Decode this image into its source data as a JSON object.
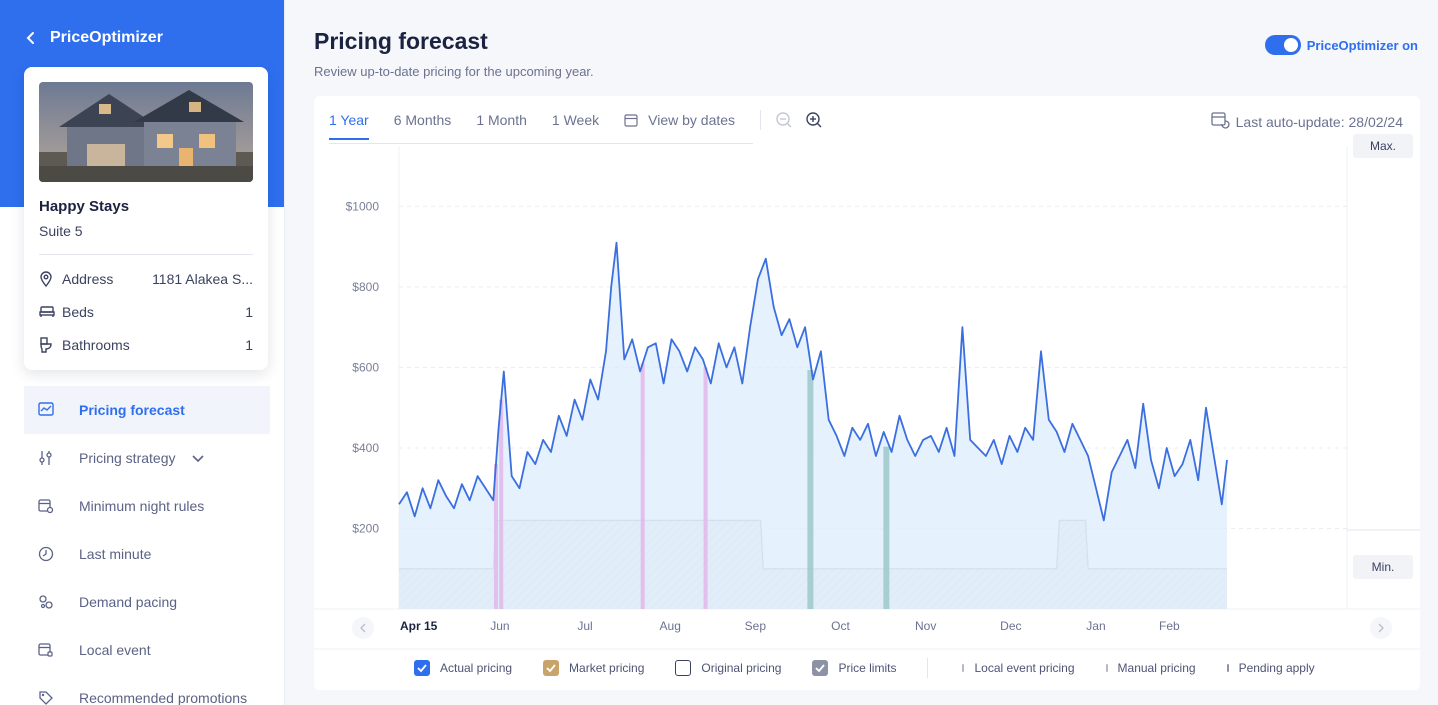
{
  "sidebar": {
    "app_title": "PriceOptimizer",
    "property": {
      "name": "Happy Stays",
      "unit": "Suite 5",
      "details": [
        {
          "label": "Address",
          "value": "1181 Alakea S..."
        },
        {
          "label": "Beds",
          "value": "1"
        },
        {
          "label": "Bathrooms",
          "value": "1"
        }
      ]
    },
    "nav": [
      {
        "label": "Pricing forecast",
        "icon": "line-chart-icon",
        "active": true
      },
      {
        "label": "Pricing strategy",
        "icon": "sliders-icon",
        "active": false
      },
      {
        "label": "Minimum night rules",
        "icon": "calendar-gear-icon",
        "active": false
      },
      {
        "label": "Last minute",
        "icon": "clock-icon",
        "active": false
      },
      {
        "label": "Demand pacing",
        "icon": "gears-icon",
        "active": false
      },
      {
        "label": "Local event",
        "icon": "calendar-event-icon",
        "active": false
      },
      {
        "label": "Recommended promotions",
        "icon": "tag-icon",
        "active": false
      }
    ]
  },
  "header": {
    "title": "Pricing forecast",
    "subtitle": "Review up-to-date pricing for the upcoming year.",
    "toggle_label": "PriceOptimizer on",
    "toggle_on": true
  },
  "toolbar": {
    "tabs": [
      "1 Year",
      "6 Months",
      "1 Month",
      "1 Week"
    ],
    "active_tab": "1 Year",
    "view_by_dates": "View by dates",
    "last_update": "Last auto-update: 28/02/24"
  },
  "chart_buttons": {
    "max": "Max.",
    "min": "Min."
  },
  "colors": {
    "accent": "#2f6fee",
    "actual_line": "#3b6fe0",
    "market_fill": "#dcecfb",
    "local_event": "#e3b6ea",
    "manual": "#9cc9c9",
    "limit_line": "#b9c0cc"
  },
  "chart_data": {
    "type": "line",
    "title": "Pricing forecast",
    "xlabel": "",
    "ylabel": "",
    "x_tick_labels": [
      "Apr 15",
      "Jun",
      "Jul",
      "Aug",
      "Sep",
      "Oct",
      "Nov",
      "Dec",
      "Jan",
      "Feb"
    ],
    "y_tick_labels": [
      "$200",
      "$400",
      "$600",
      "$800",
      "$1000"
    ],
    "y_ticks": [
      200,
      400,
      600,
      800,
      1000
    ],
    "ylim": [
      0,
      1150
    ],
    "x_range_days": [
      0,
      316
    ],
    "series": [
      {
        "name": "Actual pricing",
        "days": [
          0,
          3,
          6,
          9,
          12,
          15,
          18,
          21,
          24,
          27,
          30,
          33,
          36,
          38,
          40,
          43,
          46,
          49,
          52,
          55,
          58,
          61,
          64,
          67,
          70,
          73,
          76,
          79,
          81,
          83,
          86,
          89,
          92,
          95,
          98,
          101,
          104,
          107,
          110,
          113,
          116,
          119,
          122,
          125,
          128,
          131,
          134,
          137,
          140,
          143,
          146,
          149,
          152,
          155,
          158,
          161,
          164,
          167,
          170,
          173,
          176,
          179,
          182,
          185,
          188,
          191,
          194,
          197,
          200,
          203,
          206,
          209,
          212,
          215,
          218,
          221,
          224,
          227,
          230,
          233,
          236,
          239,
          242,
          245,
          248,
          251,
          254,
          257,
          260,
          263,
          266,
          269,
          272,
          275,
          278,
          281,
          284,
          287,
          290,
          293,
          296,
          299,
          302,
          305,
          308,
          311,
          314,
          316
        ],
        "values": [
          260,
          290,
          230,
          300,
          250,
          320,
          280,
          250,
          310,
          270,
          330,
          300,
          270,
          450,
          590,
          330,
          300,
          390,
          360,
          420,
          390,
          480,
          430,
          520,
          470,
          570,
          520,
          640,
          800,
          910,
          620,
          670,
          590,
          650,
          660,
          560,
          670,
          640,
          590,
          650,
          620,
          560,
          660,
          600,
          650,
          560,
          700,
          820,
          870,
          750,
          680,
          720,
          650,
          700,
          570,
          640,
          470,
          430,
          380,
          450,
          420,
          460,
          380,
          440,
          390,
          480,
          420,
          380,
          420,
          430,
          390,
          450,
          380,
          700,
          420,
          400,
          380,
          420,
          360,
          430,
          390,
          450,
          420,
          640,
          470,
          440,
          390,
          460,
          420,
          380,
          300,
          220,
          340,
          380,
          420,
          350,
          510,
          370,
          300,
          400,
          330,
          360,
          420,
          320,
          500,
          380,
          260,
          370
        ]
      },
      {
        "name": "Price limits",
        "min_days": [
          0,
          36,
          37,
          138,
          139,
          251,
          252,
          262,
          263,
          316
        ],
        "min_values": [
          100,
          100,
          220,
          220,
          100,
          100,
          220,
          220,
          100,
          100
        ]
      }
    ],
    "legend": [
      {
        "label": "Actual pricing",
        "checked": true,
        "color": "#2f6fee"
      },
      {
        "label": "Market pricing",
        "checked": true,
        "color": "#c9a46a"
      },
      {
        "label": "Original pricing",
        "checked": false,
        "color": "#ffffff"
      },
      {
        "label": "Price limits",
        "checked": true,
        "color": "#8d93a5"
      },
      {
        "label": "Local event pricing",
        "marker": true,
        "color": "#b5b9c6"
      },
      {
        "label": "Manual pricing",
        "marker": true,
        "color": "#b5b9c6"
      },
      {
        "label": "Pending apply",
        "marker": true,
        "color": "#8d93a5"
      }
    ],
    "local_event_days": [
      37,
      39,
      93,
      117
    ],
    "manual_days": [
      157,
      186
    ],
    "grid": true,
    "legend_position": "bottom"
  }
}
